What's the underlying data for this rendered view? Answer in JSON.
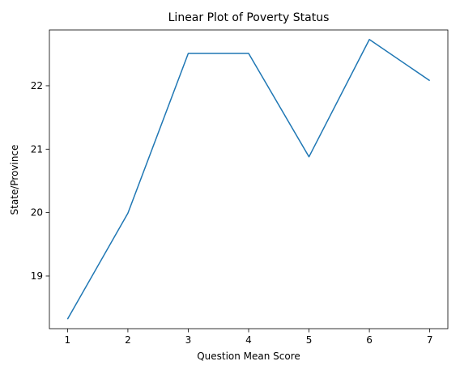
{
  "chart_data": {
    "type": "line",
    "title": "Linear Plot of Poverty Status",
    "xlabel": "Question Mean Score",
    "ylabel": "State/Province",
    "x": [
      1,
      2,
      3,
      4,
      5,
      6,
      7
    ],
    "series": [
      {
        "values": [
          18.32,
          19.99,
          22.51,
          22.51,
          20.88,
          22.73,
          22.08
        ]
      }
    ],
    "xlim": [
      0.7,
      7.3
    ],
    "ylim": [
      18.17,
      22.88
    ],
    "xticks": [
      1,
      2,
      3,
      4,
      5,
      6,
      7
    ],
    "xtick_labels": [
      "1",
      "2",
      "3",
      "4",
      "5",
      "6",
      "7"
    ],
    "yticks": [
      19,
      20,
      21,
      22
    ],
    "ytick_labels": [
      "19",
      "20",
      "21",
      "22"
    ],
    "grid": false,
    "legend": false,
    "colors": {
      "line": "#1f77b4",
      "axes": "#000000",
      "background": "#ffffff"
    }
  }
}
